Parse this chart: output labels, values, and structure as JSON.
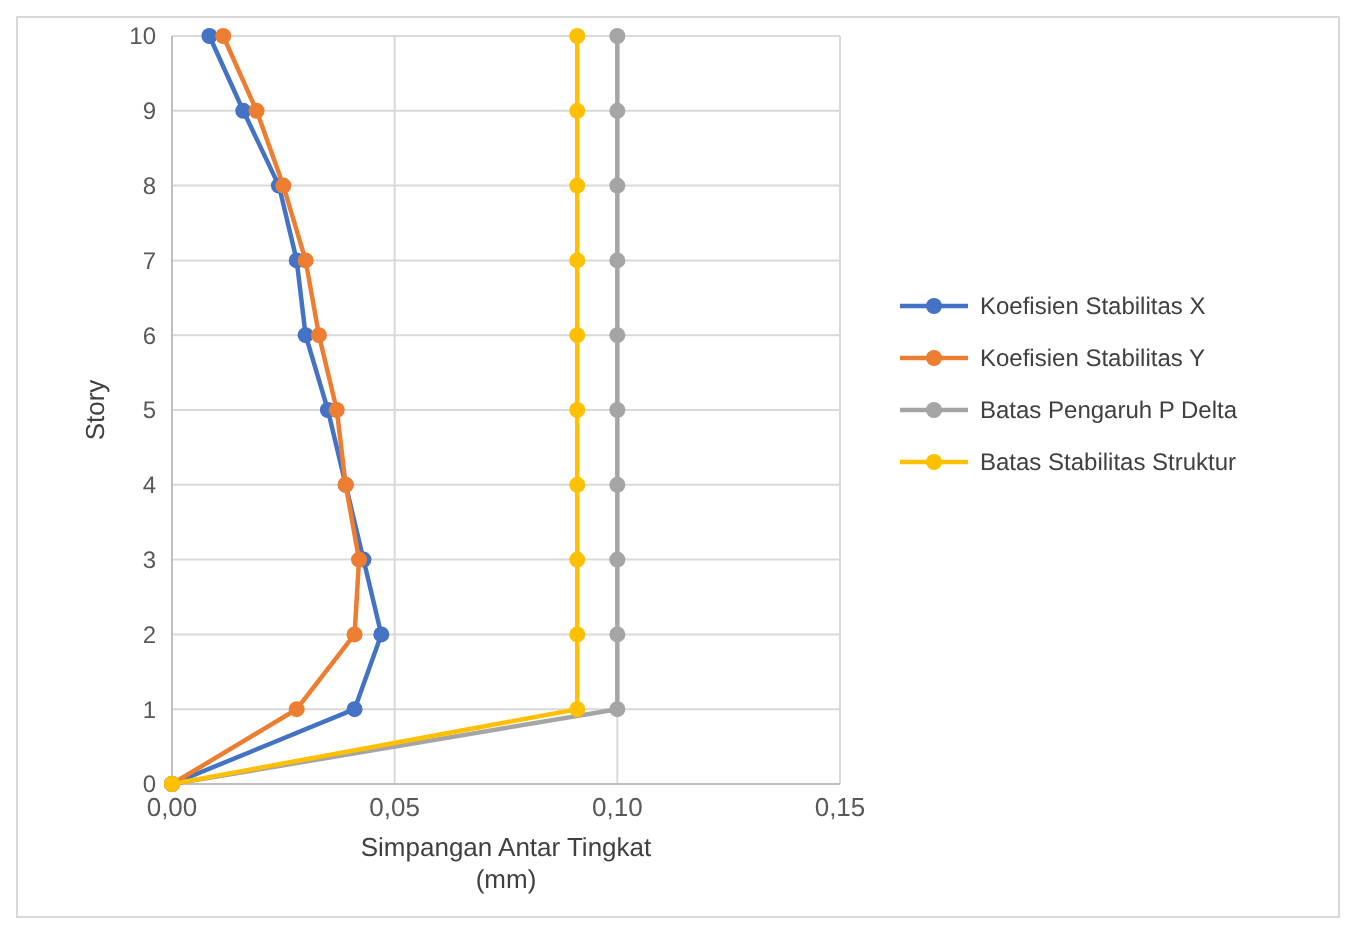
{
  "chart_data": {
    "type": "line",
    "xlabel": "Simpangan Antar Tingkat\n(mm)",
    "ylabel": "Story",
    "xlim": [
      0,
      0.15
    ],
    "xticks": [
      {
        "value": 0,
        "label": "0,00"
      },
      {
        "value": 0.05,
        "label": "0,05"
      },
      {
        "value": 0.1,
        "label": "0,10"
      },
      {
        "value": 0.15,
        "label": "0,15"
      }
    ],
    "ylim": [
      0,
      10
    ],
    "yticks": [
      0,
      1,
      2,
      3,
      4,
      5,
      6,
      7,
      8,
      9,
      10
    ],
    "grid": true,
    "legend": "right",
    "marker": "circle",
    "line_style": "solid",
    "series": [
      {
        "name": "Koefisien Stabilitas X",
        "color": "#4472c4",
        "x": [
          0,
          0.041,
          0.047,
          0.043,
          0.039,
          0.035,
          0.03,
          0.028,
          0.024,
          0.016,
          0.0084
        ],
        "values": [
          0,
          1,
          2,
          3,
          4,
          5,
          6,
          7,
          8,
          9,
          10
        ]
      },
      {
        "name": "Koefisien Stabilitas Y",
        "color": "#ed7d31",
        "x": [
          0,
          0.028,
          0.041,
          0.042,
          0.039,
          0.037,
          0.033,
          0.03,
          0.025,
          0.019,
          0.0115
        ],
        "values": [
          0,
          1,
          2,
          3,
          4,
          5,
          6,
          7,
          8,
          9,
          10
        ]
      },
      {
        "name": "Batas Pengaruh P Delta",
        "color": "#a5a5a5",
        "x": [
          0,
          0.1,
          0.1,
          0.1,
          0.1,
          0.1,
          0.1,
          0.1,
          0.1,
          0.1,
          0.1
        ],
        "values": [
          0,
          1,
          2,
          3,
          4,
          5,
          6,
          7,
          8,
          9,
          10
        ]
      },
      {
        "name": "Batas Stabilitas Struktur",
        "color": "#ffc000",
        "x": [
          0,
          0.091,
          0.091,
          0.091,
          0.091,
          0.091,
          0.091,
          0.091,
          0.091,
          0.091,
          0.091
        ],
        "values": [
          0,
          1,
          2,
          3,
          4,
          5,
          6,
          7,
          8,
          9,
          10
        ]
      }
    ]
  }
}
